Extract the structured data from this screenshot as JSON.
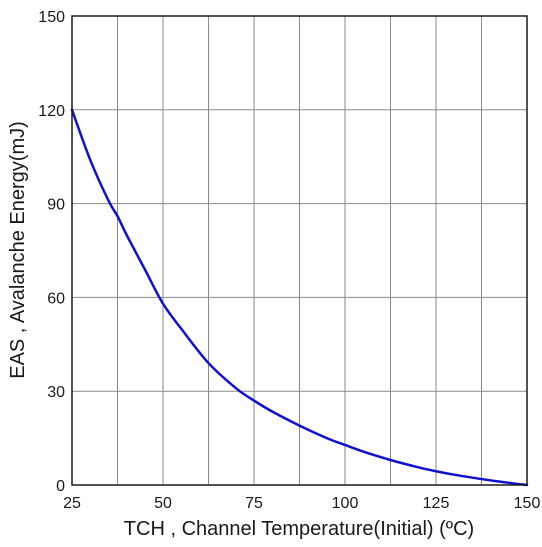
{
  "chart_data": {
    "type": "line",
    "title": "",
    "xlabel": "TCH , Channel Temperature(Initial) (ºC)",
    "ylabel": "EAS , Avalanche Energy(mJ)",
    "xlim": [
      25,
      150
    ],
    "ylim": [
      0,
      150
    ],
    "xticks": [
      "25",
      "50",
      "75",
      "100",
      "125",
      "150"
    ],
    "yticks": [
      "0",
      "30",
      "60",
      "90",
      "120",
      "150"
    ],
    "x_gridlines": [
      25,
      37.5,
      50,
      62.5,
      75,
      87.5,
      100,
      112.5,
      125,
      137.5,
      150
    ],
    "y_gridlines": [
      0,
      30,
      60,
      90,
      120,
      150
    ],
    "grid": true,
    "line_color": "#1010d0",
    "series": [
      {
        "x": [
          25,
          30,
          35,
          37.5,
          40,
          45,
          50,
          55,
          62.5,
          70,
          75,
          80,
          87.5,
          95,
          100,
          105,
          112.5,
          120,
          125,
          130,
          137.5,
          145,
          150
        ],
        "values": [
          120,
          104,
          91,
          86,
          80,
          69,
          58,
          50,
          39,
          31,
          27,
          23.5,
          19,
          15,
          12.8,
          10.7,
          8,
          5.7,
          4.4,
          3.3,
          1.9,
          0.7,
          0
        ]
      }
    ]
  }
}
